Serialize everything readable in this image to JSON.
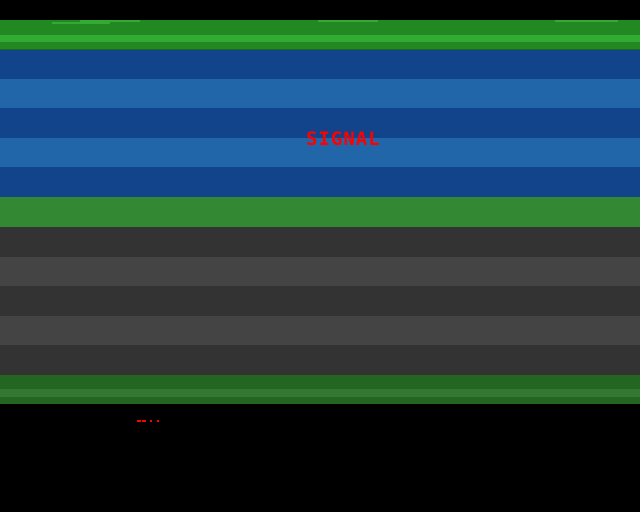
{
  "game": {
    "title": "SIGNAL"
  },
  "colors": {
    "background": "#000000",
    "grass": "#228822",
    "grass_light": "#33aa33",
    "water_dark": "#11448a",
    "water_light": "#2266aa",
    "median": "#338833",
    "road_dark": "#333333",
    "road_light": "#444444",
    "bottom_grass": "#226622",
    "title_text": "#ff0000"
  }
}
